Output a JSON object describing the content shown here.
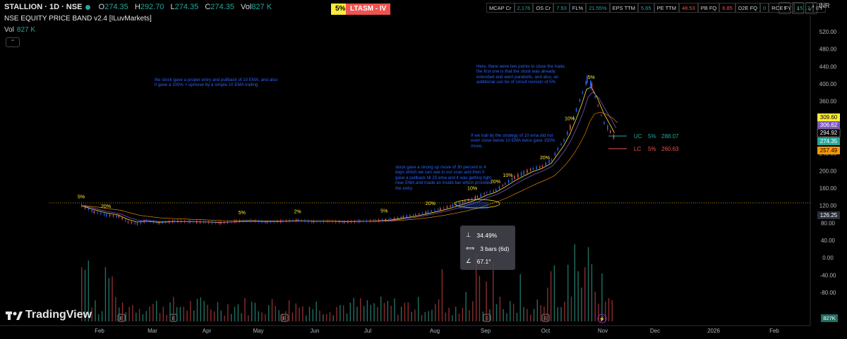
{
  "header": {
    "symbol": "STALLION · 1D · NSE",
    "o_label": "O",
    "o_value": "274.35",
    "h_label": "H",
    "h_value": "292.70",
    "l_label": "L",
    "l_value": "274.35",
    "c_label": "C",
    "c_value": "274.35",
    "vol_label": "Vol",
    "vol_value": "827 K",
    "indicator": "NSE EQUITY PRICE BAND v2.4 [ILuvMarkets]",
    "vol_row_label": "Vol",
    "vol_row_value": "827 K"
  },
  "tags": {
    "band": "5%",
    "surveillance": "LTASM - IV"
  },
  "fundamentals": [
    {
      "k": "MCAP Cr",
      "v": "2,176",
      "tone": "pos"
    },
    {
      "k": "OS Cr",
      "v": "7.93",
      "tone": "pos"
    },
    {
      "k": "FL%",
      "v": "21.55%",
      "tone": "pos"
    },
    {
      "k": "EPS TTM",
      "v": "5.65",
      "tone": "pos"
    },
    {
      "k": "PE TTM",
      "v": "48.53",
      "tone": "neg"
    },
    {
      "k": "PB FQ",
      "v": "6.85",
      "tone": "neg"
    },
    {
      "k": "D2E FQ",
      "v": "0",
      "tone": "pos"
    },
    {
      "k": "ROE FY",
      "v": "15.17",
      "tone": "pos"
    },
    {
      "k": "EY",
      "v": "",
      "tone": "pos"
    }
  ],
  "currency": "INR",
  "notes": {
    "n1": "the stock gave a proper entry and pullback of 10 EMA, and also it gave a 100% + upmove by a simple 10 EMA trailing",
    "n2": "stock gave a strong up move of 30 percent in 4 days which we can see in our scan and then it gave a pullback till 20 ema and it was getting tight near EMA and made an inside bar which provided the entry",
    "n3": "If we trail by the strategy of 10 ema did not even close below 10 EMA twice gave 150% move.",
    "n4": "Here, there were two points to close the trade, the first one is that the stock was already extended and went parabolic, and also, an additional can be of circuit revision of 5%"
  },
  "measure": {
    "pct": "34.49%",
    "bars": "3 bars (6d)",
    "angle": "67.1°"
  },
  "logo_text": "TradingView",
  "chart_data": {
    "type": "candlestick",
    "x_ticks": [
      "Feb",
      "Mar",
      "Apr",
      "May",
      "Jun",
      "Jul",
      "Aug",
      "Sep",
      "Oct",
      "Nov",
      "Dec",
      "2026",
      "Feb"
    ],
    "y_ticks": [
      "520.00",
      "480.00",
      "440.00",
      "400.00",
      "360.00",
      "320.00",
      "280.00",
      "240.00",
      "200.00",
      "160.00",
      "120.00",
      "80.00",
      "40.00",
      "0.00",
      "-40.00",
      "-80.00"
    ],
    "ylim": [
      -100,
      540
    ],
    "price_labels": [
      {
        "value": 309.6,
        "text": "309.60",
        "color": "#ffeb3b",
        "fg": "#000"
      },
      {
        "value": 306.62,
        "text": "306.62",
        "color": "#7e57c2",
        "fg": "#fff"
      },
      {
        "value": 294.92,
        "text": "294.92",
        "color": "#000000",
        "fg": "#fff"
      },
      {
        "value": 274.35,
        "text": "274.35",
        "color": "#26a69a",
        "fg": "#fff"
      },
      {
        "value": 257.49,
        "text": "257.49",
        "color": "#ff9800",
        "fg": "#000"
      },
      {
        "value": 126.25,
        "text": "126.25",
        "color": "#2a2e39",
        "fg": "#fff"
      }
    ],
    "volume_label": "827K",
    "reference_line": 126.25,
    "circuit_levels": [
      {
        "name": "UC",
        "pct": "5%",
        "value": "288.07",
        "color": "#26a69a"
      },
      {
        "name": "LC",
        "pct": "5%",
        "value": "260.63",
        "color": "#ef5350"
      }
    ],
    "band_markers": [
      {
        "date": 0,
        "text": "5%"
      },
      {
        "date": 16,
        "text": "20%"
      },
      {
        "date": 104,
        "text": "5%"
      },
      {
        "date": 140,
        "text": "2%"
      },
      {
        "date": 196,
        "text": "5%"
      },
      {
        "date": 226,
        "text": "20%"
      },
      {
        "date": 253,
        "text": "10%"
      },
      {
        "date": 268,
        "text": "20%"
      },
      {
        "date": 276,
        "text": "10%"
      },
      {
        "date": 300,
        "text": "20%"
      },
      {
        "date": 316,
        "text": "10%"
      },
      {
        "date": 330,
        "text": "5%"
      }
    ],
    "price_path": [
      [
        0,
        120
      ],
      [
        8,
        105
      ],
      [
        16,
        98
      ],
      [
        24,
        95
      ],
      [
        30,
        82
      ],
      [
        36,
        78
      ],
      [
        42,
        85
      ],
      [
        50,
        80
      ],
      [
        60,
        84
      ],
      [
        70,
        83
      ],
      [
        80,
        82
      ],
      [
        90,
        80
      ],
      [
        100,
        84
      ],
      [
        110,
        85
      ],
      [
        120,
        82
      ],
      [
        130,
        84
      ],
      [
        140,
        86
      ],
      [
        150,
        83
      ],
      [
        160,
        84
      ],
      [
        170,
        82
      ],
      [
        180,
        84
      ],
      [
        190,
        85
      ],
      [
        200,
        88
      ],
      [
        208,
        94
      ],
      [
        216,
        98
      ],
      [
        224,
        105
      ],
      [
        232,
        112
      ],
      [
        240,
        120
      ],
      [
        248,
        130
      ],
      [
        256,
        140
      ],
      [
        262,
        150
      ],
      [
        268,
        155
      ],
      [
        274,
        170
      ],
      [
        280,
        185
      ],
      [
        286,
        195
      ],
      [
        292,
        205
      ],
      [
        298,
        210
      ],
      [
        304,
        225
      ],
      [
        308,
        250
      ],
      [
        312,
        270
      ],
      [
        316,
        300
      ],
      [
        320,
        340
      ],
      [
        324,
        380
      ],
      [
        327,
        410
      ],
      [
        330,
        395
      ],
      [
        334,
        350
      ],
      [
        338,
        310
      ],
      [
        342,
        290
      ],
      [
        345,
        274
      ]
    ]
  }
}
